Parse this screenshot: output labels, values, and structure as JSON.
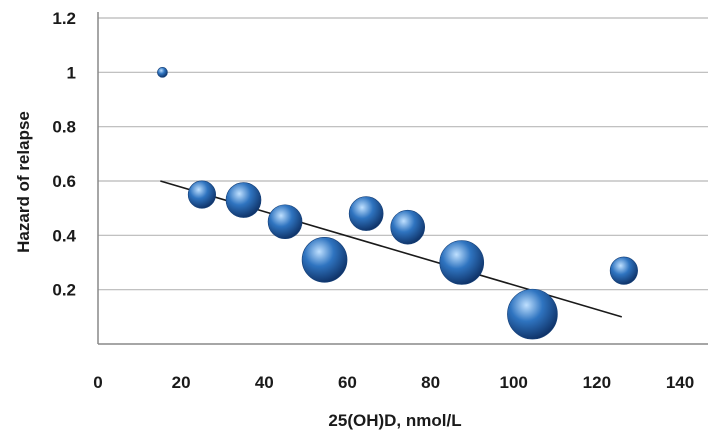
{
  "chart_data": {
    "type": "scatter",
    "title": "",
    "xlabel": "25(OH)D, nmol/L",
    "ylabel": "Hazard of relapse",
    "xlim": [
      0,
      140
    ],
    "ylim": [
      0,
      1.2
    ],
    "x_ticks": [
      "0",
      "20",
      "40",
      "60",
      "80",
      "100",
      "120",
      "140"
    ],
    "y_ticks": [
      "0.2",
      "0.4",
      "0.6",
      "0.8",
      "1",
      "1.2"
    ],
    "grid": "horizontal",
    "legend": "none",
    "colors": {
      "bubble": "#2f74c0",
      "bubble_light": "#bfe0ff",
      "bubble_dark": "#0d2f63",
      "trend": "#1a1a1a",
      "grid": "#b8b8b8"
    },
    "points": [
      {
        "x": 15.5,
        "y": 1.0,
        "size": 0.2
      },
      {
        "x": 25,
        "y": 0.55,
        "size": 0.55
      },
      {
        "x": 35,
        "y": 0.53,
        "size": 0.7
      },
      {
        "x": 45,
        "y": 0.45,
        "size": 0.68
      },
      {
        "x": 54.5,
        "y": 0.31,
        "size": 0.9
      },
      {
        "x": 64.5,
        "y": 0.48,
        "size": 0.68
      },
      {
        "x": 74.5,
        "y": 0.43,
        "size": 0.68
      },
      {
        "x": 87.5,
        "y": 0.3,
        "size": 0.88
      },
      {
        "x": 104.5,
        "y": 0.11,
        "size": 1.0
      },
      {
        "x": 126.5,
        "y": 0.27,
        "size": 0.55
      }
    ],
    "trendline": {
      "x": [
        15,
        126
      ],
      "y": [
        0.6,
        0.1
      ]
    }
  }
}
